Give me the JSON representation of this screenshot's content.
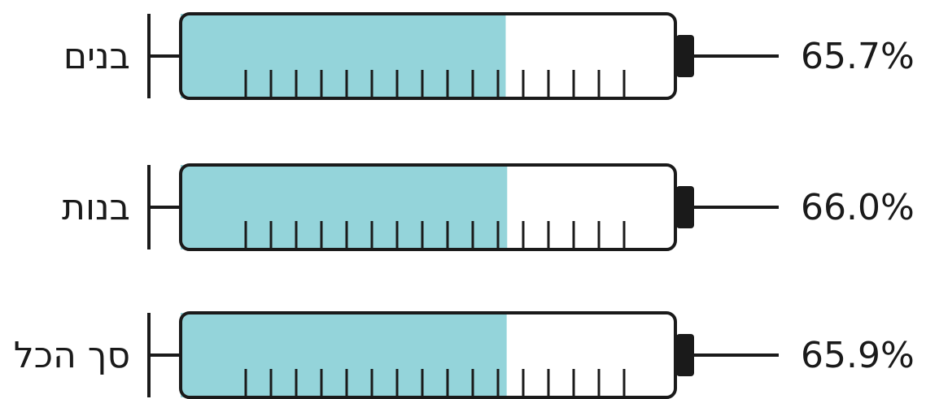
{
  "chart_data": {
    "type": "bar",
    "categories": [
      "בנים",
      "בנות",
      "סך הכל"
    ],
    "values": [
      65.7,
      66.0,
      65.9
    ],
    "value_labels": [
      "65.7%",
      "66.0%",
      "65.9%"
    ],
    "unit": "%",
    "ylim": [
      0,
      100
    ],
    "style": "syringe",
    "colors": {
      "fill": "#94d4da",
      "outline": "#1a1a1a",
      "background": "#ffffff"
    }
  }
}
